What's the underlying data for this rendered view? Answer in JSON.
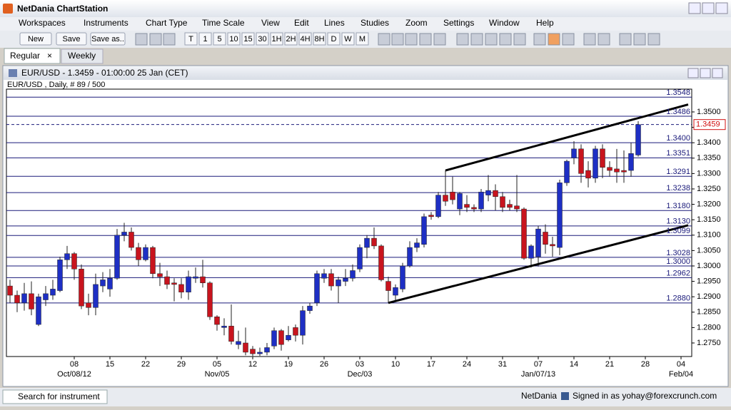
{
  "app": {
    "title": "NetDania ChartStation",
    "menu": [
      "Workspaces",
      "Instruments",
      "Chart Type",
      "Time Scale",
      "View",
      "Edit",
      "Lines",
      "Studies",
      "Zoom",
      "Settings",
      "Window",
      "Help"
    ],
    "toolbar": {
      "buttons": [
        "New",
        "Save",
        "Save as.."
      ],
      "timescales": [
        "T",
        "1",
        "5",
        "10",
        "15",
        "30",
        "1H",
        "2H",
        "4H",
        "8H",
        "D",
        "W",
        "M"
      ]
    },
    "tabs": [
      "Regular",
      "Weekly"
    ],
    "window_title": "EUR/USD - 1.3459 - 01:00:00  25 Jan (CET)",
    "search_placeholder": "Search for instrument",
    "status": {
      "provider": "NetDania",
      "signed_in": "Signed in as yohay@forexcrunch.com"
    }
  },
  "chart_data": {
    "type": "candlestick",
    "title": "EUR/USD , Daily, # 89 / 500",
    "x": [
      "2012-09-25",
      "2012-09-26",
      "2012-09-27",
      "2012-09-28",
      "2012-10-01",
      "2012-10-02",
      "2012-10-03",
      "2012-10-04",
      "2012-10-05",
      "2012-10-08",
      "2012-10-09",
      "2012-10-10",
      "2012-10-11",
      "2012-10-12",
      "2012-10-15",
      "2012-10-16",
      "2012-10-17",
      "2012-10-18",
      "2012-10-19",
      "2012-10-22",
      "2012-10-23",
      "2012-10-24",
      "2012-10-25",
      "2012-10-26",
      "2012-10-29",
      "2012-10-30",
      "2012-10-31",
      "2012-11-01",
      "2012-11-02",
      "2012-11-05",
      "2012-11-06",
      "2012-11-07",
      "2012-11-08",
      "2012-11-09",
      "2012-11-12",
      "2012-11-13",
      "2012-11-14",
      "2012-11-15",
      "2012-11-16",
      "2012-11-19",
      "2012-11-20",
      "2012-11-21",
      "2012-11-22",
      "2012-11-23",
      "2012-11-26",
      "2012-11-27",
      "2012-11-28",
      "2012-11-29",
      "2012-11-30",
      "2012-12-03",
      "2012-12-04",
      "2012-12-05",
      "2012-12-06",
      "2012-12-07",
      "2012-12-10",
      "2012-12-11",
      "2012-12-12",
      "2012-12-13",
      "2012-12-14",
      "2012-12-17",
      "2012-12-18",
      "2012-12-19",
      "2012-12-20",
      "2012-12-21",
      "2012-12-24",
      "2012-12-25",
      "2012-12-26",
      "2012-12-27",
      "2012-12-28",
      "2012-12-31",
      "2013-01-01",
      "2013-01-02",
      "2013-01-03",
      "2013-01-04",
      "2013-01-07",
      "2013-01-08",
      "2013-01-09",
      "2013-01-10",
      "2013-01-11",
      "2013-01-14",
      "2013-01-15",
      "2013-01-16",
      "2013-01-17",
      "2013-01-18",
      "2013-01-21",
      "2013-01-22",
      "2013-01-23",
      "2013-01-24",
      "2013-01-25"
    ],
    "open": [
      1.2935,
      1.2905,
      1.288,
      1.291,
      1.281,
      1.289,
      1.2905,
      1.292,
      1.302,
      1.304,
      1.299,
      1.288,
      1.2865,
      1.2935,
      1.2925,
      1.296,
      1.31,
      1.311,
      1.306,
      1.302,
      1.306,
      1.2975,
      1.2965,
      1.2945,
      1.294,
      1.2915,
      1.296,
      1.2965,
      1.2945,
      1.2835,
      1.28,
      1.2805,
      1.2745,
      1.275,
      1.273,
      1.2715,
      1.272,
      1.274,
      1.279,
      1.276,
      1.28,
      1.2775,
      1.2855,
      1.288,
      1.296,
      1.2975,
      1.2935,
      1.295,
      1.296,
      1.299,
      1.306,
      1.309,
      1.3065,
      1.295,
      1.2905,
      1.2925,
      1.3,
      1.306,
      1.307,
      1.3165,
      1.316,
      1.323,
      1.324,
      1.3185,
      1.32,
      1.319,
      1.3185,
      1.323,
      1.3245,
      1.3225,
      1.32,
      1.3195,
      1.3185,
      1.3025,
      1.303,
      1.311,
      1.307,
      1.306,
      1.327,
      1.335,
      1.338,
      1.331,
      1.3285,
      1.338,
      1.332,
      1.3315,
      1.331,
      1.331,
      1.336
    ],
    "high": [
      1.2955,
      1.292,
      1.2945,
      1.295,
      1.291,
      1.2935,
      1.2955,
      1.303,
      1.3065,
      1.3045,
      1.3005,
      1.291,
      1.2975,
      1.298,
      1.299,
      1.312,
      1.314,
      1.3125,
      1.3075,
      1.307,
      1.3065,
      1.301,
      1.2985,
      1.296,
      1.296,
      1.2985,
      1.2995,
      1.302,
      1.295,
      1.284,
      1.283,
      1.2875,
      1.279,
      1.28,
      1.274,
      1.2735,
      1.275,
      1.28,
      1.2795,
      1.2805,
      1.281,
      1.287,
      1.288,
      1.2985,
      1.299,
      1.299,
      1.2965,
      1.299,
      1.3005,
      1.307,
      1.31,
      1.3125,
      1.307,
      1.2965,
      1.294,
      1.301,
      1.308,
      1.309,
      1.317,
      1.3175,
      1.324,
      1.331,
      1.329,
      1.324,
      1.323,
      1.32,
      1.325,
      1.3295,
      1.3265,
      1.324,
      1.3215,
      1.3295,
      1.319,
      1.307,
      1.313,
      1.3135,
      1.3095,
      1.328,
      1.3345,
      1.3405,
      1.3395,
      1.334,
      1.339,
      1.3395,
      1.334,
      1.338,
      1.3375,
      1.34,
      1.347
    ],
    "low": [
      1.288,
      1.285,
      1.2855,
      1.284,
      1.2805,
      1.287,
      1.289,
      1.2915,
      1.299,
      1.2955,
      1.286,
      1.284,
      1.284,
      1.2915,
      1.29,
      1.2955,
      1.308,
      1.305,
      1.3,
      1.3015,
      1.296,
      1.2935,
      1.2925,
      1.2885,
      1.2895,
      1.289,
      1.2945,
      1.293,
      1.2825,
      1.279,
      1.2775,
      1.2745,
      1.273,
      1.271,
      1.2708,
      1.2708,
      1.271,
      1.273,
      1.2725,
      1.2755,
      1.2755,
      1.2745,
      1.2845,
      1.287,
      1.2945,
      1.292,
      1.288,
      1.2935,
      1.295,
      1.298,
      1.3025,
      1.3055,
      1.295,
      1.288,
      1.2885,
      1.2915,
      1.2995,
      1.3045,
      1.306,
      1.315,
      1.3155,
      1.3195,
      1.32,
      1.3165,
      1.3175,
      1.3175,
      1.3175,
      1.321,
      1.318,
      1.3175,
      1.318,
      1.3175,
      1.302,
      1.2995,
      1.2998,
      1.304,
      1.303,
      1.3035,
      1.326,
      1.333,
      1.327,
      1.3255,
      1.327,
      1.3285,
      1.329,
      1.327,
      1.327,
      1.329,
      1.3355
    ],
    "close": [
      1.2905,
      1.288,
      1.291,
      1.286,
      1.29,
      1.291,
      1.2925,
      1.302,
      1.304,
      1.299,
      1.287,
      1.2865,
      1.294,
      1.2955,
      1.296,
      1.31,
      1.311,
      1.306,
      1.302,
      1.306,
      1.2975,
      1.2965,
      1.294,
      1.294,
      1.2915,
      1.2965,
      1.2965,
      1.2945,
      1.2835,
      1.281,
      1.2805,
      1.2755,
      1.2755,
      1.272,
      1.2715,
      1.272,
      1.2735,
      1.279,
      1.2745,
      1.2775,
      1.2775,
      1.2855,
      1.287,
      1.2975,
      1.2975,
      1.2935,
      1.2955,
      1.296,
      1.2985,
      1.306,
      1.309,
      1.3065,
      1.2955,
      1.292,
      1.293,
      1.3,
      1.306,
      1.3075,
      1.316,
      1.316,
      1.323,
      1.321,
      1.3215,
      1.3235,
      1.319,
      1.3185,
      1.324,
      1.3245,
      1.3225,
      1.319,
      1.319,
      1.3185,
      1.3025,
      1.3065,
      1.312,
      1.307,
      1.3065,
      1.327,
      1.334,
      1.338,
      1.33,
      1.3285,
      1.338,
      1.332,
      1.331,
      1.3305,
      1.3305,
      1.3365,
      1.3459
    ],
    "up_color": "#1e2fc4",
    "down_color": "#c8141e",
    "xlim": [
      "2012-09-25",
      "2013-02-05"
    ],
    "ylim": [
      1.2706,
      1.3574
    ],
    "yticks": [
      {
        "value": 1.275,
        "label": "1.2750"
      },
      {
        "value": 1.28,
        "label": "1.2800"
      },
      {
        "value": 1.285,
        "label": "1.2850"
      },
      {
        "value": 1.29,
        "label": "1.2900"
      },
      {
        "value": 1.295,
        "label": "1.2950"
      },
      {
        "value": 1.3,
        "label": "1.3000"
      },
      {
        "value": 1.305,
        "label": "1.3050"
      },
      {
        "value": 1.31,
        "label": "1.3100"
      },
      {
        "value": 1.315,
        "label": "1.3150"
      },
      {
        "value": 1.32,
        "label": "1.3200"
      },
      {
        "value": 1.325,
        "label": "1.3250"
      },
      {
        "value": 1.33,
        "label": "1.3300"
      },
      {
        "value": 1.335,
        "label": "1.3350"
      },
      {
        "value": 1.34,
        "label": "1.3400"
      },
      {
        "value": 1.345,
        "label": "1.3450"
      },
      {
        "value": 1.35,
        "label": "1.3500"
      }
    ],
    "xticks": [
      {
        "value": "2012-10-08",
        "label": "08"
      },
      {
        "value": "2012-10-15",
        "label": "15"
      },
      {
        "value": "2012-10-22",
        "label": "22"
      },
      {
        "value": "2012-10-29",
        "label": "29"
      },
      {
        "value": "2012-11-05",
        "label": "05"
      },
      {
        "value": "2012-11-12",
        "label": "12"
      },
      {
        "value": "2012-11-19",
        "label": "19"
      },
      {
        "value": "2012-11-26",
        "label": "26"
      },
      {
        "value": "2012-12-03",
        "label": "03"
      },
      {
        "value": "2012-12-10",
        "label": "10"
      },
      {
        "value": "2012-12-17",
        "label": "17"
      },
      {
        "value": "2012-12-24",
        "label": "24"
      },
      {
        "value": "2012-12-31",
        "label": "31"
      },
      {
        "value": "2013-01-07",
        "label": "07"
      },
      {
        "value": "2013-01-14",
        "label": "14"
      },
      {
        "value": "2013-01-21",
        "label": "21"
      },
      {
        "value": "2013-01-28",
        "label": "28"
      },
      {
        "value": "2013-02-04",
        "label": "04"
      }
    ],
    "xticks_major": [
      {
        "value": "2012-10-08",
        "label": "Oct/08/12"
      },
      {
        "value": "2012-11-05",
        "label": "Nov/05"
      },
      {
        "value": "2012-12-03",
        "label": "Dec/03"
      },
      {
        "value": "2013-01-07",
        "label": "Jan/07/13"
      },
      {
        "value": "2013-02-04",
        "label": "Feb/04"
      }
    ],
    "levels": [
      1.3548,
      1.3486,
      {
        "value": 1.34,
        "label": "1.3400"
      },
      1.3351,
      1.3291,
      1.3238,
      {
        "value": 1.318,
        "label": "1.3180"
      },
      {
        "value": 1.313,
        "label": "1.3130"
      },
      1.3099,
      1.3028,
      {
        "value": 1.3,
        "label": "1.3000"
      },
      1.2962,
      {
        "value": 1.288,
        "label": "1.2880"
      }
    ],
    "level_color": "#1a1a7a",
    "last": 1.3459,
    "last_color": "#d01010",
    "trendlines": [
      {
        "x": [
          "2012-12-19",
          "2013-02-05"
        ],
        "y": [
          1.331,
          1.3524
        ]
      },
      {
        "x": [
          "2012-12-07",
          "2013-02-05"
        ],
        "y": [
          1.288,
          1.3132
        ]
      }
    ]
  }
}
